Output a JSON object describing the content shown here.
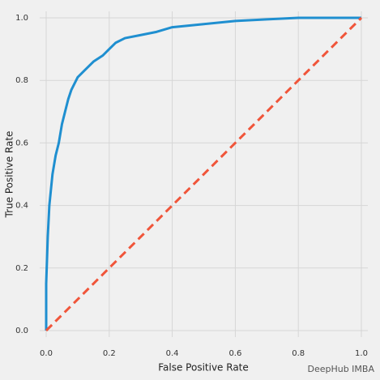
{
  "chart_data": {
    "type": "line",
    "xlabel": "False Positive Rate",
    "ylabel": "True Positive Rate",
    "xlim": [
      0,
      1
    ],
    "ylim": [
      0,
      1
    ],
    "xticks": [
      {
        "value": 0,
        "label": "0.0"
      },
      0.2,
      0.4,
      0.6,
      0.8,
      {
        "value": 1,
        "label": "1.0"
      }
    ],
    "yticks": [
      {
        "value": 0,
        "label": "0.0"
      },
      0.2,
      0.4,
      0.6,
      0.8,
      {
        "value": 1,
        "label": "1.0"
      }
    ],
    "grid": true,
    "series": [
      {
        "color": "#1f8fd0",
        "dash": false,
        "x": [
          0,
          0,
          0.005,
          0.01,
          0.02,
          0.03,
          0.04,
          0.05,
          0.06,
          0.07,
          0.08,
          0.1,
          0.12,
          0.15,
          0.18,
          0.2,
          0.22,
          0.25,
          0.3,
          0.35,
          0.4,
          0.5,
          0.6,
          0.7,
          0.8,
          0.9,
          1
        ],
        "values": [
          0,
          0.15,
          0.3,
          0.4,
          0.5,
          0.56,
          0.6,
          0.66,
          0.7,
          0.74,
          0.77,
          0.81,
          0.83,
          0.86,
          0.88,
          0.9,
          0.92,
          0.935,
          0.945,
          0.955,
          0.97,
          0.98,
          0.99,
          0.995,
          1,
          1,
          1
        ]
      },
      {
        "color": "#f0553a",
        "dash": true,
        "x": [
          0,
          1
        ],
        "values": [
          0,
          1
        ]
      }
    ],
    "watermark": "DeepHub IMBA"
  }
}
